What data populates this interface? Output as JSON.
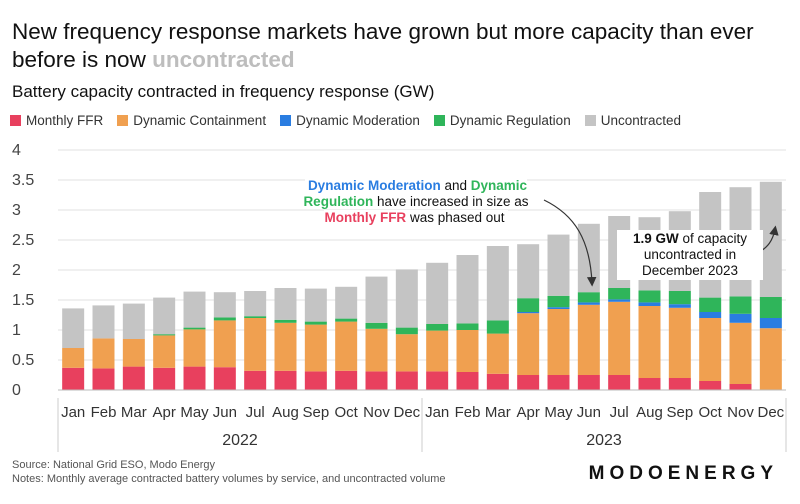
{
  "title": "New frequency response markets have grown but more capacity than ever before is now",
  "title_emphasis": "uncontracted",
  "subtitle": "Battery capacity contracted in frequency response (GW)",
  "colors": {
    "monthly_ffr": "#e8405e",
    "dynamic_containment": "#f0a050",
    "dynamic_moderation": "#2a7de1",
    "dynamic_regulation": "#2fb55a",
    "uncontracted": "#c4c4c4"
  },
  "annotation1": {
    "dm": "Dynamic Moderation",
    "and": "and",
    "dr": "Dynamic Regulation",
    "mid": "have increased in size as",
    "ffr": "Monthly FFR",
    "end": "was phased out"
  },
  "annotation2": {
    "value": "1.9 GW",
    "rest1": "of capacity",
    "rest2": "uncontracted in",
    "rest3": "December 2023"
  },
  "footer": {
    "source": "Source: National Grid ESO, Modo Energy",
    "notes": "Notes: Monthly average contracted battery volumes by service, and uncontracted volume"
  },
  "brand": "MODOENERGY",
  "chart_data": {
    "type": "bar",
    "stacked": true,
    "title": "Battery capacity contracted in frequency response (GW)",
    "xlabel": "",
    "ylabel": "GW",
    "ylim": [
      0,
      4
    ],
    "yticks": [
      0,
      0.5,
      1,
      1.5,
      2,
      2.5,
      3,
      3.5,
      4
    ],
    "ytick_labels": [
      "0",
      "0.5",
      "1",
      "1.5",
      "2",
      "2.5",
      "3",
      "3.5",
      "4"
    ],
    "categories": [
      "Jan",
      "Feb",
      "Mar",
      "Apr",
      "May",
      "Jun",
      "Jul",
      "Aug",
      "Sep",
      "Oct",
      "Nov",
      "Dec",
      "Jan",
      "Feb",
      "Mar",
      "Apr",
      "May",
      "Jun",
      "Jul",
      "Aug",
      "Sep",
      "Oct",
      "Nov",
      "Dec"
    ],
    "groups": [
      {
        "label": "2022",
        "start": 0,
        "end": 11
      },
      {
        "label": "2023",
        "start": 12,
        "end": 23
      }
    ],
    "series": [
      {
        "name": "Monthly FFR",
        "color": "#e8405e",
        "values": [
          0.37,
          0.36,
          0.39,
          0.37,
          0.39,
          0.38,
          0.32,
          0.32,
          0.31,
          0.32,
          0.31,
          0.31,
          0.31,
          0.3,
          0.27,
          0.25,
          0.25,
          0.25,
          0.25,
          0.2,
          0.2,
          0.15,
          0.1,
          0.0
        ]
      },
      {
        "name": "Dynamic Containment",
        "color": "#f0a050",
        "values": [
          0.33,
          0.5,
          0.46,
          0.54,
          0.62,
          0.78,
          0.88,
          0.8,
          0.78,
          0.82,
          0.71,
          0.62,
          0.68,
          0.7,
          0.67,
          1.03,
          1.1,
          1.17,
          1.22,
          1.2,
          1.17,
          1.05,
          1.02,
          1.03
        ]
      },
      {
        "name": "Dynamic Moderation",
        "color": "#2a7de1",
        "values": [
          0.0,
          0.0,
          0.0,
          0.0,
          0.0,
          0.0,
          0.0,
          0.0,
          0.0,
          0.0,
          0.0,
          0.0,
          0.0,
          0.0,
          0.0,
          0.02,
          0.03,
          0.04,
          0.04,
          0.06,
          0.06,
          0.1,
          0.15,
          0.17
        ]
      },
      {
        "name": "Dynamic Regulation",
        "color": "#2fb55a",
        "values": [
          0.0,
          0.0,
          0.0,
          0.02,
          0.03,
          0.05,
          0.03,
          0.05,
          0.05,
          0.05,
          0.1,
          0.11,
          0.11,
          0.11,
          0.22,
          0.23,
          0.19,
          0.17,
          0.19,
          0.2,
          0.22,
          0.24,
          0.29,
          0.35
        ]
      },
      {
        "name": "Uncontracted",
        "color": "#c4c4c4",
        "values": [
          0.66,
          0.55,
          0.59,
          0.61,
          0.6,
          0.42,
          0.42,
          0.53,
          0.55,
          0.53,
          0.77,
          0.97,
          1.02,
          1.14,
          1.24,
          0.9,
          1.02,
          1.14,
          1.2,
          1.22,
          1.33,
          1.76,
          1.82,
          1.92
        ]
      }
    ],
    "legend_position": "top-left",
    "grid": "horizontal"
  }
}
